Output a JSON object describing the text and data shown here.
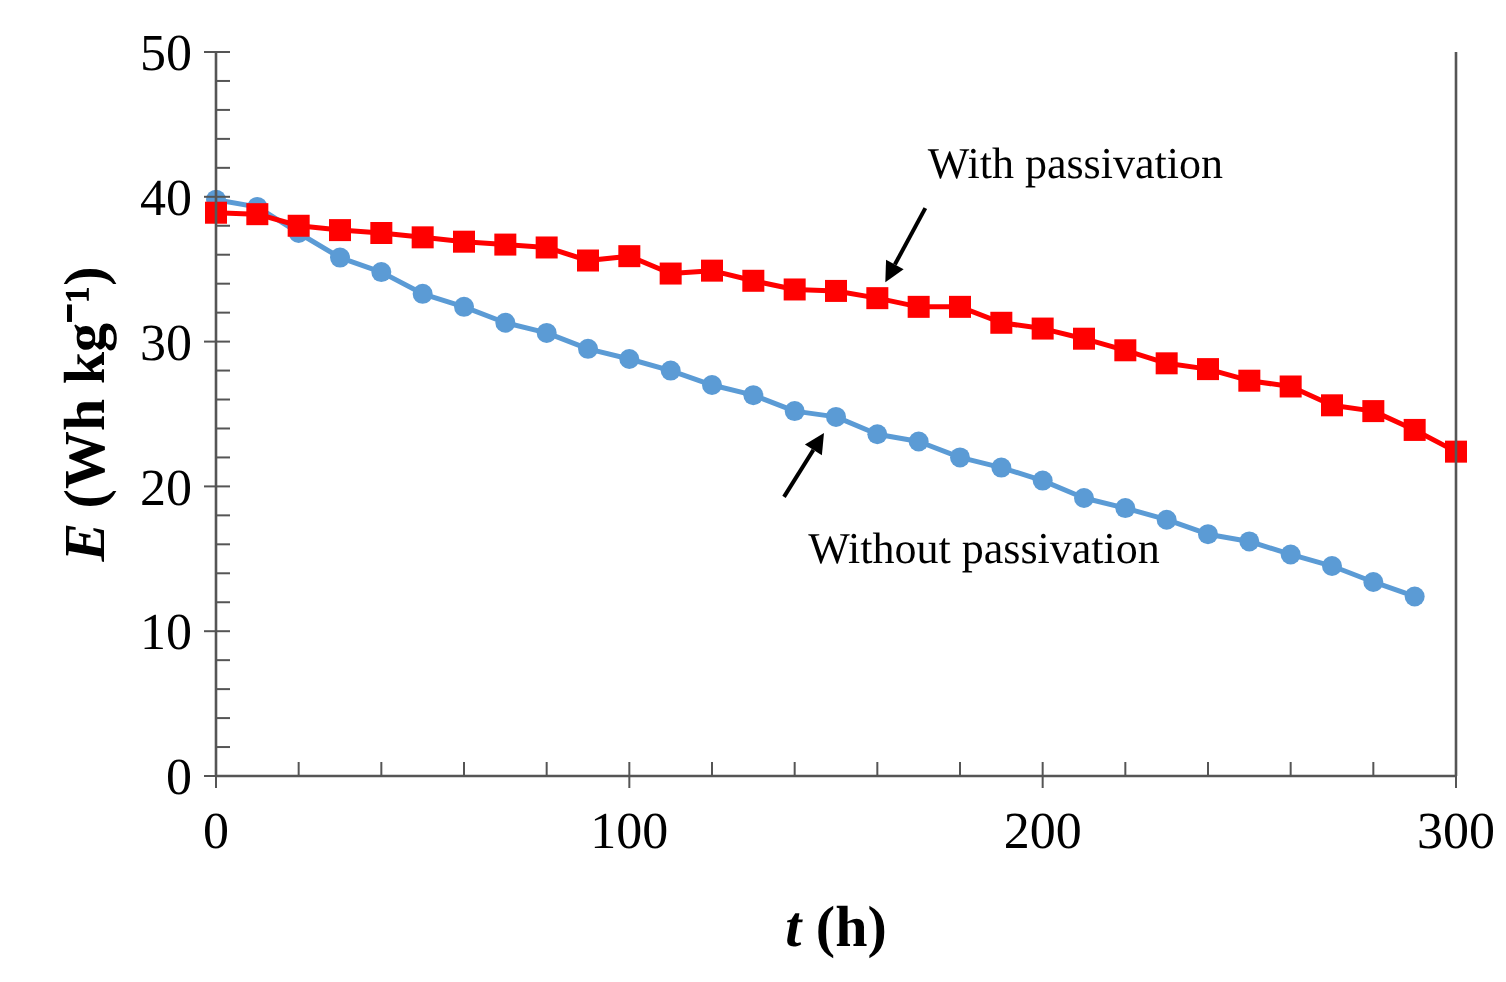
{
  "chart_data": {
    "type": "line",
    "xlabel": "t (h)",
    "ylabel": "E (Wh kg⁻¹)",
    "xlim": [
      0,
      300
    ],
    "ylim": [
      0,
      50
    ],
    "xticks": [
      0,
      {
        "value": 20,
        "label": null
      },
      {
        "value": 40,
        "label": null
      },
      {
        "value": 60,
        "label": null
      },
      {
        "value": 80,
        "label": null
      },
      100,
      {
        "value": 120,
        "label": null
      },
      {
        "value": 140,
        "label": null
      },
      {
        "value": 160,
        "label": null
      },
      {
        "value": 180,
        "label": null
      },
      200,
      {
        "value": 220,
        "label": null
      },
      {
        "value": 240,
        "label": null
      },
      {
        "value": 260,
        "label": null
      },
      {
        "value": 280,
        "label": null
      },
      300
    ],
    "yticks": [
      0,
      {
        "value": 2,
        "label": null
      },
      {
        "value": 4,
        "label": null
      },
      {
        "value": 6,
        "label": null
      },
      {
        "value": 8,
        "label": null
      },
      10,
      {
        "value": 12,
        "label": null
      },
      {
        "value": 14,
        "label": null
      },
      {
        "value": 16,
        "label": null
      },
      {
        "value": 18,
        "label": null
      },
      20,
      {
        "value": 22,
        "label": null
      },
      {
        "value": 24,
        "label": null
      },
      {
        "value": 26,
        "label": null
      },
      {
        "value": 28,
        "label": null
      },
      30,
      {
        "value": 32,
        "label": null
      },
      {
        "value": 34,
        "label": null
      },
      {
        "value": 36,
        "label": null
      },
      {
        "value": 38,
        "label": null
      },
      40,
      {
        "value": 42,
        "label": null
      },
      {
        "value": 44,
        "label": null
      },
      {
        "value": 46,
        "label": null
      },
      {
        "value": 48,
        "label": null
      },
      50
    ],
    "series": [
      {
        "color": "#5b9bd5",
        "marker": "circle",
        "x": [
          0,
          10,
          20,
          30,
          40,
          50,
          60,
          70,
          80,
          90,
          100,
          110,
          120,
          130,
          140,
          150,
          160,
          170,
          180,
          190,
          200,
          210,
          220,
          230,
          240,
          250,
          260,
          270,
          280,
          290
        ],
        "values": [
          39.8,
          39.3,
          37.5,
          35.8,
          34.8,
          33.3,
          32.4,
          31.3,
          30.6,
          29.5,
          28.8,
          28.0,
          27.0,
          26.3,
          25.2,
          24.8,
          23.6,
          23.1,
          22.0,
          21.3,
          20.4,
          19.2,
          18.5,
          17.7,
          16.7,
          16.2,
          15.3,
          14.5,
          13.4,
          12.4
        ]
      },
      {
        "color": "#ff0000",
        "marker": "square",
        "x": [
          0,
          10,
          20,
          30,
          40,
          50,
          60,
          70,
          80,
          90,
          100,
          110,
          120,
          130,
          140,
          150,
          160,
          170,
          180,
          190,
          200,
          210,
          220,
          230,
          240,
          250,
          260,
          270,
          280,
          290,
          300
        ],
        "values": [
          38.9,
          38.8,
          38.0,
          37.7,
          37.5,
          37.2,
          36.9,
          36.7,
          36.5,
          35.6,
          35.9,
          34.7,
          34.9,
          34.2,
          33.6,
          33.5,
          33.0,
          32.4,
          32.4,
          31.3,
          30.9,
          30.2,
          29.4,
          28.5,
          28.1,
          27.3,
          26.9,
          25.6,
          25.2,
          23.9,
          22.4
        ]
      }
    ],
    "annotations": [
      {
        "text": "With passivation",
        "x": 160,
        "y": 33.0
      },
      {
        "text": "Without passivation",
        "x": 150,
        "y": 24.8
      }
    ],
    "grid": false
  }
}
